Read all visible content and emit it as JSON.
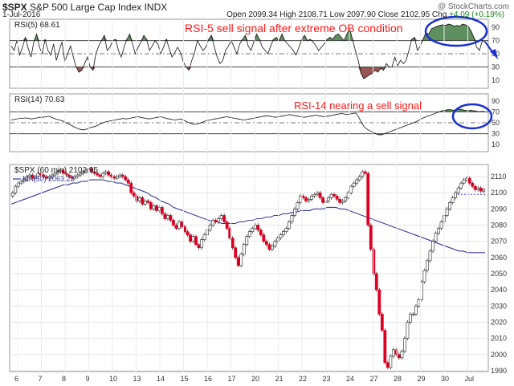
{
  "header": {
    "symbol": "$SPX",
    "name": "S&P 500 Large Cap Index",
    "exchange": "INDX",
    "watermark": "@ StockCharts.com",
    "date": "1-Jul-2016",
    "open_label": "Open",
    "open": "2099.34",
    "high_label": "High",
    "high": "2108.71",
    "low_label": "Low",
    "low": "2097.90",
    "close_label": "Close",
    "close": "2102.95",
    "chg_label": "Chg",
    "chg": "+4.09 (+0.19%)"
  },
  "colors": {
    "up_candle": "#ffffff",
    "down_candle": "#dd0022",
    "ob_fill": "#5e8f5e",
    "os_fill": "#9a5555",
    "annotation": "#ff1a1a",
    "highlight": "#1a2fd0",
    "ma_line": "#3a3a9a"
  },
  "chart_data": [
    {
      "type": "line",
      "panel": "rsi5",
      "title": "RSI(5) 68.61",
      "annotation": "RSI-5 sell signal after extreme OB condition",
      "y_ticks": [
        "90",
        "70",
        "50",
        "30",
        "10"
      ],
      "ylim": [
        0,
        100
      ],
      "overbought": 70,
      "oversold": 30,
      "values": [
        62,
        55,
        70,
        48,
        60,
        75,
        58,
        45,
        68,
        80,
        60,
        50,
        72,
        55,
        48,
        65,
        40,
        55,
        68,
        38,
        50,
        62,
        45,
        30,
        22,
        25,
        35,
        45,
        30,
        25,
        50,
        62,
        70,
        78,
        55,
        60,
        70,
        72,
        55,
        45,
        60,
        72,
        80,
        65,
        50,
        60,
        68,
        78,
        72,
        55,
        62,
        70,
        65,
        50,
        60,
        72,
        58,
        45,
        52,
        60,
        52,
        38,
        30,
        25,
        40,
        52,
        70,
        62,
        55,
        60,
        72,
        78,
        60,
        45,
        35,
        40,
        55,
        62,
        70,
        60,
        50,
        65,
        72,
        78,
        62,
        55,
        68,
        80,
        72,
        60,
        55,
        50,
        62,
        72,
        75,
        70,
        80,
        70,
        65,
        60,
        55,
        48,
        60,
        72,
        78,
        70,
        72,
        68,
        62,
        55,
        60,
        65,
        72,
        75,
        72,
        78,
        80,
        75,
        70,
        80,
        88,
        72,
        55,
        40,
        20,
        12,
        15,
        18,
        20,
        25,
        22,
        28,
        25,
        35,
        30,
        30,
        45,
        32,
        40,
        35,
        40,
        55,
        72,
        75,
        55,
        62,
        72,
        82,
        80,
        88,
        90,
        92,
        93,
        94,
        93,
        95,
        94,
        92,
        93,
        92,
        95,
        94,
        92,
        85,
        75,
        60,
        55,
        70,
        68
      ]
    },
    {
      "type": "line",
      "panel": "rsi14",
      "title": "RSI(14) 70.63",
      "annotation": "RSI-14 nearing a sell signal",
      "y_ticks": [
        "90",
        "70",
        "50",
        "30",
        "10"
      ],
      "ylim": [
        0,
        100
      ],
      "overbought": 70,
      "oversold": 30,
      "values": [
        55,
        56,
        57,
        58,
        58,
        59,
        58,
        57,
        58,
        59,
        60,
        60,
        61,
        62,
        60,
        58,
        56,
        55,
        53,
        50,
        48,
        45,
        42,
        40,
        38,
        37,
        38,
        40,
        42,
        43,
        45,
        48,
        50,
        52,
        53,
        54,
        55,
        56,
        57,
        58,
        57,
        58,
        59,
        60,
        61,
        60,
        59,
        58,
        57,
        58,
        59,
        60,
        61,
        60,
        58,
        57,
        56,
        55,
        56,
        57,
        55,
        52,
        50,
        48,
        47,
        48,
        50,
        52,
        54,
        55,
        56,
        57,
        58,
        59,
        60,
        61,
        60,
        59,
        58,
        57,
        56,
        55,
        56,
        57,
        58,
        59,
        60,
        61,
        62,
        63,
        62,
        61,
        60,
        61,
        62,
        63,
        64,
        65,
        64,
        63,
        62,
        61,
        60,
        61,
        62,
        63,
        64,
        63,
        62,
        61,
        62,
        63,
        64,
        65,
        66,
        67,
        66,
        65,
        66,
        67,
        68,
        60,
        50,
        42,
        38,
        35,
        33,
        30,
        28,
        28,
        30,
        32,
        34,
        36,
        38,
        40,
        42,
        44,
        46,
        48,
        50,
        52,
        55,
        58,
        60,
        62,
        64,
        66,
        68,
        70,
        72,
        73,
        74,
        74,
        73,
        74,
        75,
        74,
        73,
        72,
        73,
        72,
        71,
        70,
        71,
        70
      ]
    },
    {
      "type": "candlestick",
      "panel": "price",
      "title": "$SPX (60 min) 2102.95",
      "series_label": "MA(50) 2063.23",
      "ylim": [
        1990,
        2115
      ],
      "y_ticks": [
        "2110",
        "2100",
        "2090",
        "2080",
        "2070",
        "2060",
        "2050",
        "2040",
        "2030",
        "2020",
        "2010",
        "2000",
        "1990"
      ],
      "x_ticks": [
        "6",
        "7",
        "8",
        "9",
        "10",
        "13",
        "14",
        "15",
        "16",
        "17",
        "20",
        "21",
        "22",
        "23",
        "24",
        "27",
        "28",
        "29",
        "30",
        "Jul"
      ],
      "close": [
        2100,
        2104,
        2106,
        2107,
        2108,
        2110,
        2111,
        2109,
        2110,
        2112,
        2111,
        2110,
        2109,
        2110,
        2111,
        2112,
        2113,
        2114,
        2112,
        2111,
        2110,
        2109,
        2110,
        2111,
        2112,
        2113,
        2114,
        2115,
        2113,
        2112,
        2111,
        2110,
        2112,
        2113,
        2111,
        2110,
        2109,
        2110,
        2111,
        2110,
        2108,
        2106,
        2100,
        2098,
        2095,
        2097,
        2093,
        2095,
        2094,
        2090,
        2092,
        2089,
        2091,
        2087,
        2084,
        2086,
        2083,
        2080,
        2078,
        2082,
        2079,
        2076,
        2074,
        2070,
        2073,
        2068,
        2066,
        2071,
        2074,
        2077,
        2080,
        2083,
        2082,
        2084,
        2086,
        2082,
        2078,
        2072,
        2066,
        2060,
        2055,
        2062,
        2068,
        2073,
        2076,
        2078,
        2080,
        2077,
        2074,
        2070,
        2068,
        2065,
        2067,
        2070,
        2072,
        2074,
        2076,
        2078,
        2082,
        2086,
        2090,
        2094,
        2098,
        2097,
        2095,
        2096,
        2098,
        2099,
        2100,
        2097,
        2094,
        2095,
        2097,
        2099,
        2098,
        2096,
        2094,
        2095,
        2097,
        2100,
        2104,
        2106,
        2108,
        2110,
        2113,
        2112,
        2080,
        2065,
        2050,
        2040,
        2025,
        2015,
        1995,
        1992,
        1999,
        2003,
        2000,
        1998,
        2002,
        2010,
        2020,
        2025,
        2025,
        2030,
        2034,
        2045,
        2052,
        2058,
        2064,
        2070,
        2075,
        2078,
        2082,
        2086,
        2090,
        2094,
        2097,
        2100,
        2103,
        2106,
        2108,
        2109,
        2106,
        2104,
        2102,
        2103,
        2101,
        2102
      ],
      "ma50": [
        2093,
        2094,
        2095,
        2096,
        2097,
        2098,
        2099,
        2100,
        2101,
        2102,
        2103,
        2104,
        2105,
        2105,
        2106,
        2106,
        2107,
        2107,
        2108,
        2108,
        2108,
        2108,
        2107,
        2107,
        2106,
        2106,
        2105,
        2104,
        2103,
        2102,
        2101,
        2100,
        2098,
        2097,
        2095,
        2094,
        2093,
        2091,
        2090,
        2089,
        2088,
        2087,
        2086,
        2085,
        2084,
        2083,
        2082,
        2082,
        2081,
        2081,
        2081,
        2081,
        2082,
        2082,
        2083,
        2083,
        2084,
        2084,
        2085,
        2085,
        2086,
        2086,
        2087,
        2087,
        2088,
        2088,
        2089,
        2089,
        2089,
        2090,
        2090,
        2090,
        2091,
        2091,
        2091,
        2090,
        2090,
        2089,
        2088,
        2087,
        2086,
        2085,
        2084,
        2083,
        2082,
        2081,
        2080,
        2079,
        2078,
        2077,
        2076,
        2075,
        2074,
        2073,
        2072,
        2071,
        2070,
        2069,
        2068,
        2067,
        2066,
        2065,
        2064,
        2064,
        2063,
        2063,
        2063,
        2063,
        2063
      ]
    }
  ]
}
